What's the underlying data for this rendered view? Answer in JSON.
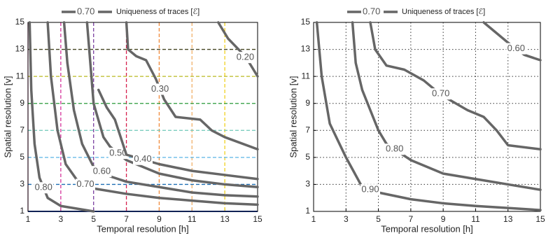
{
  "chart_data": [
    {
      "type": "contour",
      "legend": {
        "sample": "0.70",
        "title": "Uniqueness of traces [ℰ]"
      },
      "xlabel": "Temporal resolution [h]",
      "ylabel": "Spatial resolution [v]",
      "xlim": [
        1,
        15
      ],
      "ylim": [
        1,
        15
      ],
      "xticks": [
        1,
        3,
        5,
        7,
        9,
        11,
        13,
        15
      ],
      "yticks": [
        1,
        3,
        5,
        7,
        9,
        11,
        13,
        15
      ],
      "grid": false,
      "line_color": "#666666",
      "vlines": [
        {
          "x": 1,
          "color": "#e98cc0",
          "style": "solid"
        },
        {
          "x": 3,
          "color": "#d6339b",
          "style": "dashed"
        },
        {
          "x": 5,
          "color": "#7a3fa0",
          "style": "dashed"
        },
        {
          "x": 7,
          "color": "#d6204e",
          "style": "dashed"
        },
        {
          "x": 9,
          "color": "#f08a3a",
          "style": "dashed"
        },
        {
          "x": 11,
          "color": "#f2b26a",
          "style": "dashed"
        },
        {
          "x": 13,
          "color": "#f0d020",
          "style": "dashed"
        }
      ],
      "hlines": [
        {
          "y": 1,
          "color": "#2244aa",
          "style": "solid"
        },
        {
          "y": 3,
          "color": "#1f6fb5",
          "style": "dashed"
        },
        {
          "y": 5,
          "color": "#5ab4e6",
          "style": "dashed"
        },
        {
          "y": 7,
          "color": "#6fc8b8",
          "style": "dashed"
        },
        {
          "y": 9,
          "color": "#2a9a3a",
          "style": "dashed"
        },
        {
          "y": 11,
          "color": "#b8b820",
          "style": "dashed"
        },
        {
          "y": 13,
          "color": "#444422",
          "style": "dashed"
        }
      ],
      "contours": [
        {
          "label": "0.80",
          "x": [
            1.1,
            1.2,
            1.4,
            1.7,
            2.2,
            3,
            4,
            5
          ],
          "y": [
            15,
            10,
            6,
            3.5,
            2,
            1.4,
            1.2,
            1
          ]
        },
        {
          "label": "0.70",
          "x": [
            2.2,
            2.4,
            2.8,
            3.3,
            4,
            5,
            7,
            9,
            11,
            13,
            15
          ],
          "y": [
            15,
            11,
            7,
            4.5,
            3.3,
            2.7,
            2.3,
            2,
            1.8,
            1.6,
            1.5
          ]
        },
        {
          "label": "0.60",
          "x": [
            3.2,
            3.4,
            3.8,
            4.3,
            5,
            6,
            7,
            9,
            11,
            13,
            15
          ],
          "y": [
            15,
            12,
            8.5,
            6,
            4.3,
            3.6,
            3.2,
            2.8,
            2.4,
            2.2,
            2.1
          ]
        },
        {
          "label": "0.50",
          "x": [
            4.6,
            4.8,
            5,
            5.6,
            6,
            7,
            9,
            11,
            13,
            15
          ],
          "y": [
            15,
            12,
            9,
            6.5,
            5.8,
            4.8,
            3.8,
            3.3,
            3,
            2.8
          ]
        },
        {
          "label": "0.40",
          "x": [
            5.3,
            5.8,
            6.3,
            7,
            9,
            11,
            13,
            15
          ],
          "y": [
            10,
            8.7,
            7.8,
            5.2,
            4.5,
            4,
            3.7,
            3.4
          ]
        },
        {
          "label": "0.30",
          "x": [
            7,
            7.1,
            7.6,
            8.2,
            8.8,
            9.3,
            10,
            11.5,
            12.2,
            13,
            15
          ],
          "y": [
            15,
            13,
            12.5,
            12.2,
            10.8,
            9.3,
            8,
            7.8,
            7,
            6.5,
            5.6
          ]
        },
        {
          "label": "0.20",
          "x": [
            12.6,
            13.2,
            14,
            14.5,
            15
          ],
          "y": [
            15,
            13.8,
            12.8,
            12,
            11
          ]
        }
      ]
    },
    {
      "type": "contour",
      "legend": {
        "sample": "0.70",
        "title": "Uniqueness of traces [ℰ]"
      },
      "xlabel": "Temporal resolution [h]",
      "ylabel": "Spatial resolution [v]",
      "xlim": [
        1,
        15
      ],
      "ylim": [
        1,
        15
      ],
      "xticks": [
        1,
        3,
        5,
        7,
        9,
        11,
        13,
        15
      ],
      "yticks": [
        1,
        3,
        5,
        7,
        9,
        11,
        13,
        15
      ],
      "grid": true,
      "line_color": "#666666",
      "contours": [
        {
          "label": "0.90",
          "x": [
            1.2,
            1.5,
            2,
            2.6,
            3,
            4,
            5,
            7,
            9,
            11,
            13,
            15
          ],
          "y": [
            15,
            11,
            7.5,
            6,
            5,
            2.8,
            2.4,
            1.9,
            1.6,
            1.4,
            1.25,
            1.1
          ]
        },
        {
          "label": "0.80",
          "x": [
            3.4,
            3.6,
            4,
            4.5,
            5,
            5.5,
            6.5,
            7,
            9,
            11,
            13,
            15
          ],
          "y": [
            15,
            12,
            10,
            8.5,
            7,
            6,
            5.2,
            4.8,
            3.8,
            3.4,
            3,
            2.6
          ]
        },
        {
          "label": "0.70",
          "x": [
            4.5,
            4.8,
            5.5,
            6.6,
            7.8,
            8.5,
            9.2,
            10.5,
            11.5,
            12.3,
            13,
            15
          ],
          "y": [
            15,
            13,
            11.8,
            11.5,
            10.7,
            10,
            9.4,
            8.5,
            8,
            7,
            5.9,
            5.6
          ]
        },
        {
          "label": "0.60",
          "x": [
            11.5,
            12.2,
            13,
            14,
            15
          ],
          "y": [
            15,
            14.3,
            13.5,
            12.6,
            12.2
          ]
        }
      ]
    }
  ]
}
